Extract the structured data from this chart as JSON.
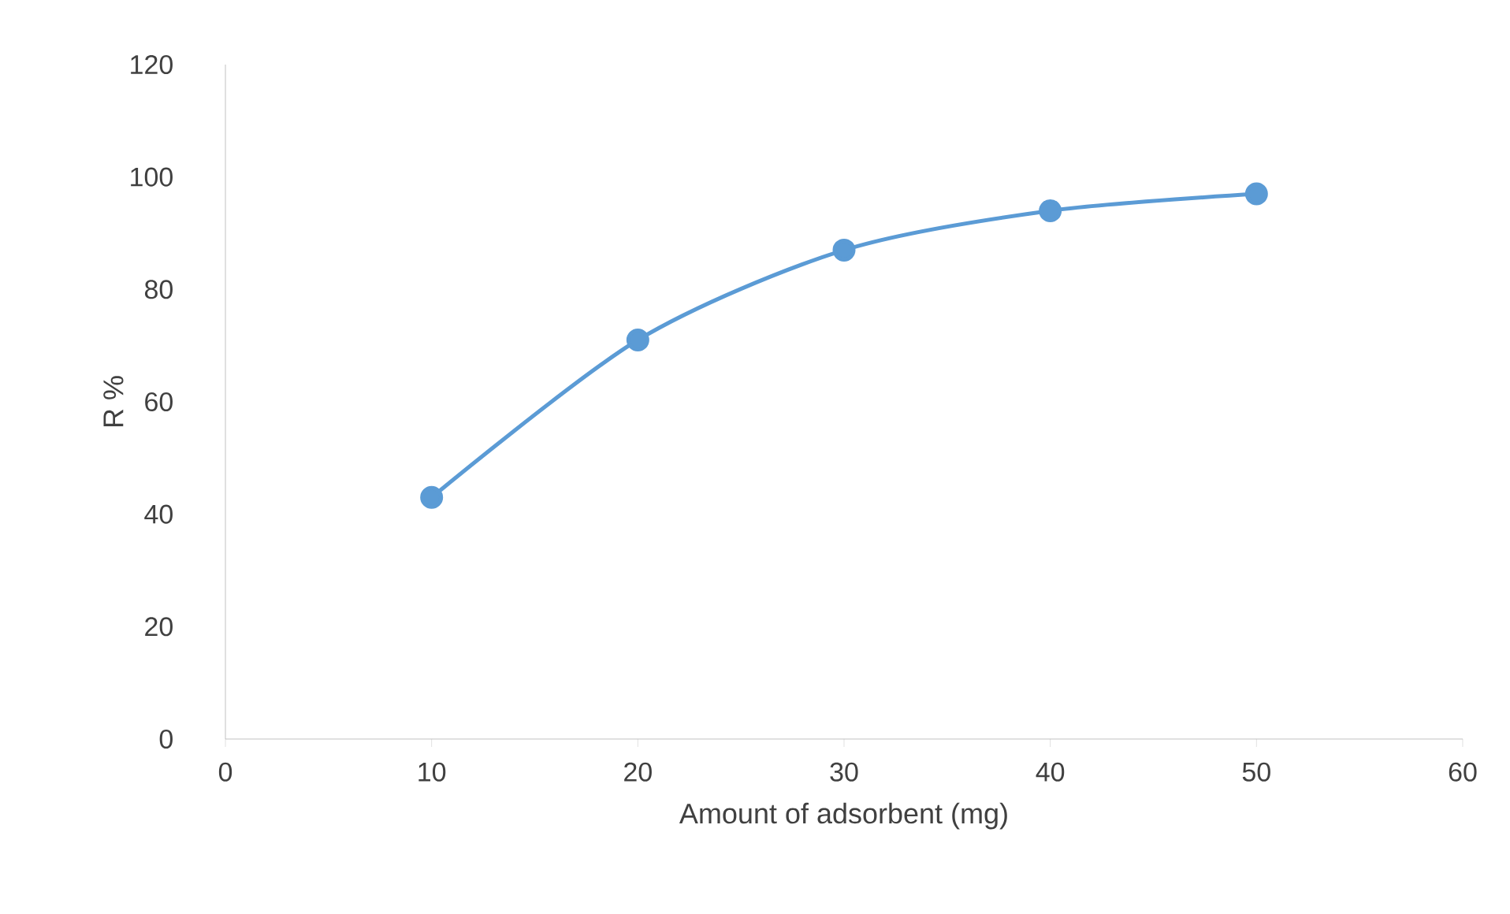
{
  "chart_data": {
    "type": "line",
    "xlabel": "Amount of adsorbent (mg)",
    "ylabel": "R %",
    "x": [
      10,
      20,
      30,
      40,
      50
    ],
    "series": [
      {
        "color": "#5b9bd5",
        "values": [
          43,
          71,
          87,
          94,
          97
        ]
      }
    ],
    "xlim": [
      0,
      60
    ],
    "xticks": [
      0,
      10,
      20,
      30,
      40,
      50,
      60
    ],
    "ylim": [
      0,
      120
    ],
    "yticks": [
      0,
      20,
      40,
      60,
      80,
      100,
      120
    ],
    "marker": "circle",
    "line_style": "solid"
  }
}
